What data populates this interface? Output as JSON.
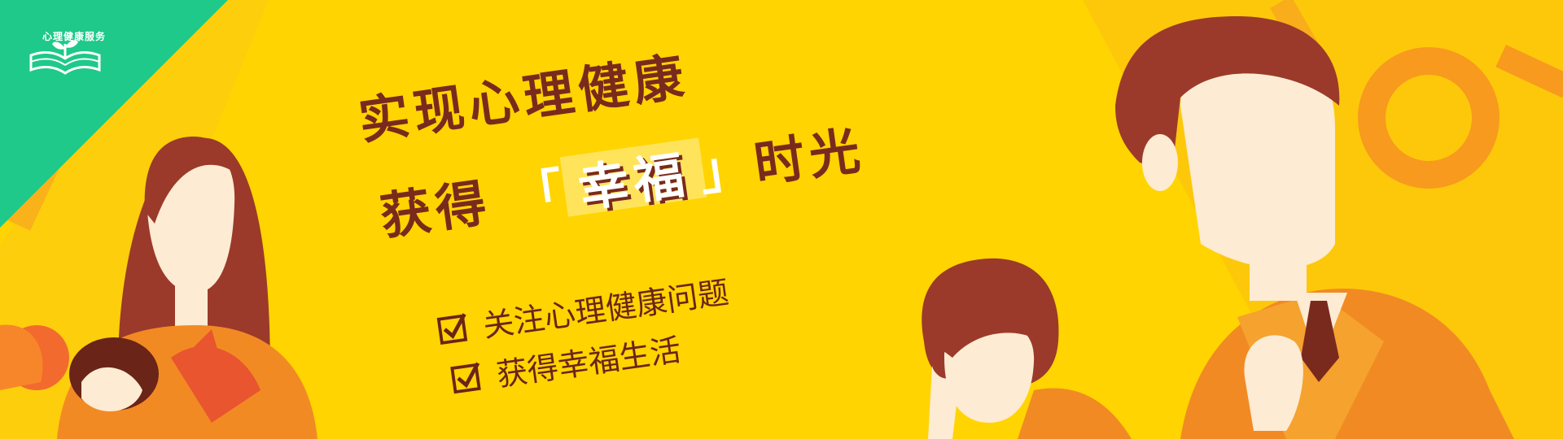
{
  "logo": {
    "text": "心理健康服务",
    "icon": "open-book-sprout-icon"
  },
  "slogan": {
    "line1": "实现心理健康",
    "line2_prefix": "获得",
    "line2_bracket_open": "「",
    "line2_highlight": "幸福",
    "line2_bracket_close": "」",
    "line2_suffix": "时光"
  },
  "checklist": [
    {
      "text": "关注心理健康问题",
      "icon": "checkbox-checked-icon"
    },
    {
      "text": "获得幸福生活",
      "icon": "checkbox-checked-icon"
    }
  ],
  "colors": {
    "background": "#ffd400",
    "accent_green": "#1ec98a",
    "text_brown": "#7a2a1c",
    "orange": "#f79a1e",
    "hair": "#9b3a2a",
    "skin": "#fdebd3"
  }
}
